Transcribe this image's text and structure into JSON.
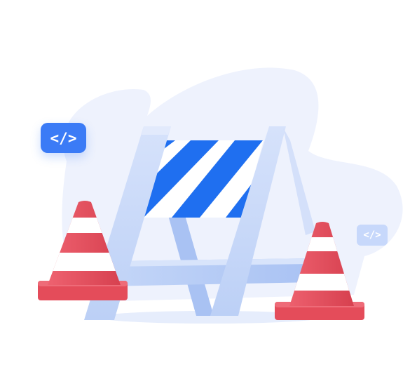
{
  "illustration": {
    "code_badge_large": {
      "text": "</>",
      "color": "#3b7bf6"
    },
    "code_badge_small": {
      "text": "</>",
      "color": "#c7d8fb"
    },
    "colors": {
      "blob": "#eef2fd",
      "barrier_frame": "#c9d8f8",
      "barrier_stripe_blue": "#1f6ff0",
      "cone_red": "#e44c5a",
      "cone_white": "#ffffff"
    }
  }
}
